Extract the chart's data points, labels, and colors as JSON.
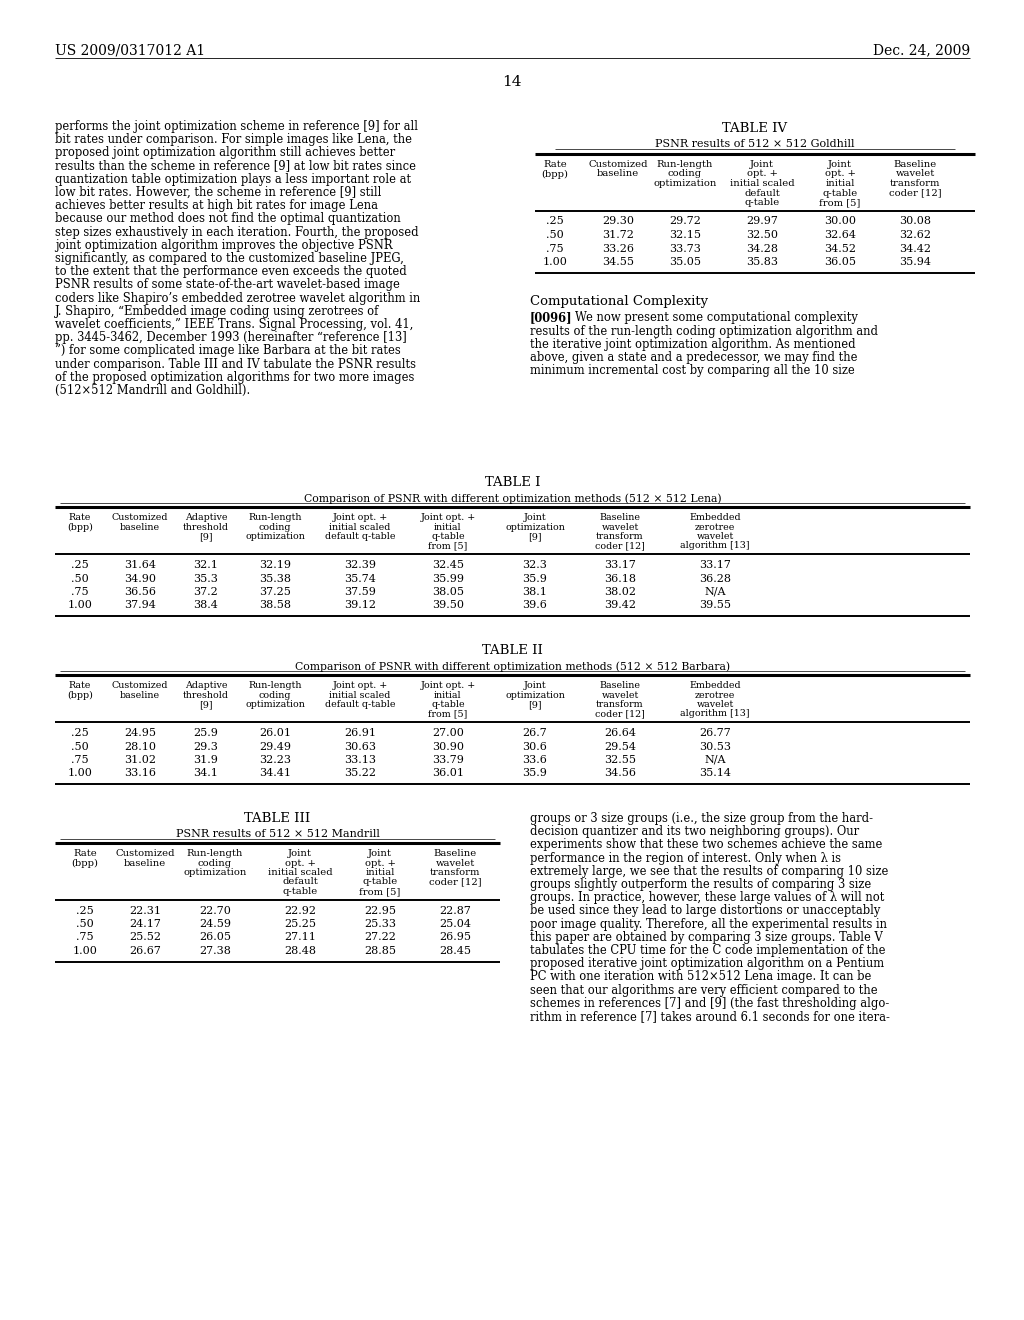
{
  "page_number": "14",
  "patent_left": "US 2009/0317012 A1",
  "patent_right": "Dec. 24, 2009",
  "background_color": "#ffffff",
  "text_color": "#000000",
  "left_column_text": [
    "performs the joint optimization scheme in reference [9] for all",
    "bit rates under comparison. For simple images like Lena, the",
    "proposed joint optimization algorithm still achieves better",
    "results than the scheme in reference [9] at low bit rates since",
    "quantization table optimization plays a less important role at",
    "low bit rates. However, the scheme in reference [9] still",
    "achieves better results at high bit rates for image Lena",
    "because our method does not find the optimal quantization",
    "step sizes exhaustively in each iteration. Fourth, the proposed",
    "joint optimization algorithm improves the objective PSNR",
    "significantly, as compared to the customized baseline JPEG,",
    "to the extent that the performance even exceeds the quoted",
    "PSNR results of some state-of-the-art wavelet-based image",
    "coders like Shapiro’s embedded zerotree wavelet algorithm in",
    "J. Shapiro, “Embedded image coding using zerotrees of",
    "wavelet coefficients,” IEEE Trans. Signal Processing, vol. 41,",
    "pp. 3445-3462, December 1993 (hereinafter “reference [13]",
    "”) for some complicated image like Barbara at the bit rates",
    "under comparison. Table III and IV tabulate the PSNR results",
    "of the proposed optimization algorithms for two more images",
    "(512×512 Mandrill and Goldhill)."
  ],
  "table4_title": "TABLE IV",
  "table4_subtitle": "PSNR results of 512 × 512 Goldhill",
  "table4_col_headers": [
    [
      "Rate",
      "(bpp)"
    ],
    [
      "Customized",
      "baseline"
    ],
    [
      "Run-length",
      "coding",
      "optimization"
    ],
    [
      "Joint",
      "opt. +",
      "initial scaled",
      "default",
      "q-table"
    ],
    [
      "Joint",
      "opt. +",
      "initial",
      "q-table",
      "from [5]"
    ],
    [
      "Baseline",
      "wavelet",
      "transform",
      "coder [12]"
    ]
  ],
  "table4_data": [
    [
      ".25",
      "29.30",
      "29.72",
      "29.97",
      "30.00",
      "30.08"
    ],
    [
      ".50",
      "31.72",
      "32.15",
      "32.50",
      "32.64",
      "32.62"
    ],
    [
      ".75",
      "33.26",
      "33.73",
      "34.28",
      "34.52",
      "34.42"
    ],
    [
      "1.00",
      "34.55",
      "35.05",
      "35.83",
      "36.05",
      "35.94"
    ]
  ],
  "comp_complexity_title": "Computational Complexity",
  "comp_complexity_para": [
    "[0096]   We now present some computational complexity",
    "results of the run-length coding optimization algorithm and",
    "the iterative joint optimization algorithm. As mentioned",
    "above, given a state and a predecessor, we may find the",
    "minimum incremental cost by comparing all the 10 size"
  ],
  "table1_title": "TABLE I",
  "table1_subtitle": "Comparison of PSNR with different optimization methods (512 × 512 Lena)",
  "table1_col_headers": [
    [
      "Rate",
      "(bpp)"
    ],
    [
      "Customized",
      "baseline"
    ],
    [
      "Adaptive",
      "threshold",
      "[9]"
    ],
    [
      "Run-length",
      "coding",
      "optimization"
    ],
    [
      "Joint opt. +",
      "initial scaled",
      "default q-table"
    ],
    [
      "Joint opt. +",
      "initial",
      "q-table",
      "from [5]"
    ],
    [
      "Joint",
      "optimization",
      "[9]"
    ],
    [
      "Baseline",
      "wavelet",
      "transform",
      "coder [12]"
    ],
    [
      "Embedded",
      "zerotree",
      "wavelet",
      "algorithm [13]"
    ]
  ],
  "table1_data": [
    [
      ".25",
      "31.64",
      "32.1",
      "32.19",
      "32.39",
      "32.45",
      "32.3",
      "33.17",
      "33.17"
    ],
    [
      ".50",
      "34.90",
      "35.3",
      "35.38",
      "35.74",
      "35.99",
      "35.9",
      "36.18",
      "36.28"
    ],
    [
      ".75",
      "36.56",
      "37.2",
      "37.25",
      "37.59",
      "38.05",
      "38.1",
      "38.02",
      "N/A"
    ],
    [
      "1.00",
      "37.94",
      "38.4",
      "38.58",
      "39.12",
      "39.50",
      "39.6",
      "39.42",
      "39.55"
    ]
  ],
  "table2_title": "TABLE II",
  "table2_subtitle": "Comparison of PSNR with different optimization methods (512 × 512 Barbara)",
  "table2_col_headers": [
    [
      "Rate",
      "(bpp)"
    ],
    [
      "Customized",
      "baseline"
    ],
    [
      "Adaptive",
      "threshold",
      "[9]"
    ],
    [
      "Run-length",
      "coding",
      "optimization"
    ],
    [
      "Joint opt. +",
      "initial scaled",
      "default q-table"
    ],
    [
      "Joint opt. +",
      "initial",
      "q-table",
      "from [5]"
    ],
    [
      "Joint",
      "optimization",
      "[9]"
    ],
    [
      "Baseline",
      "wavelet",
      "transform",
      "coder [12]"
    ],
    [
      "Embedded",
      "zerotree",
      "wavelet",
      "algorithm [13]"
    ]
  ],
  "table2_data": [
    [
      ".25",
      "24.95",
      "25.9",
      "26.01",
      "26.91",
      "27.00",
      "26.7",
      "26.64",
      "26.77"
    ],
    [
      ".50",
      "28.10",
      "29.3",
      "29.49",
      "30.63",
      "30.90",
      "30.6",
      "29.54",
      "30.53"
    ],
    [
      ".75",
      "31.02",
      "31.9",
      "32.23",
      "33.13",
      "33.79",
      "33.6",
      "32.55",
      "N/A"
    ],
    [
      "1.00",
      "33.16",
      "34.1",
      "34.41",
      "35.22",
      "36.01",
      "35.9",
      "34.56",
      "35.14"
    ]
  ],
  "table3_title": "TABLE III",
  "table3_subtitle": "PSNR results of 512 × 512 Mandrill",
  "table3_col_headers": [
    [
      "Rate",
      "(bpp)"
    ],
    [
      "Customized",
      "baseline"
    ],
    [
      "Run-length",
      "coding",
      "optimization"
    ],
    [
      "Joint",
      "opt. +",
      "initial scaled",
      "default",
      "q-table"
    ],
    [
      "Joint",
      "opt. +",
      "initial",
      "q-table",
      "from [5]"
    ],
    [
      "Baseline",
      "wavelet",
      "transform",
      "coder [12]"
    ]
  ],
  "table3_data": [
    [
      ".25",
      "22.31",
      "22.70",
      "22.92",
      "22.95",
      "22.87"
    ],
    [
      ".50",
      "24.17",
      "24.59",
      "25.25",
      "25.33",
      "25.04"
    ],
    [
      ".75",
      "25.52",
      "26.05",
      "27.11",
      "27.22",
      "26.95"
    ],
    [
      "1.00",
      "26.67",
      "27.38",
      "28.48",
      "28.85",
      "28.45"
    ]
  ],
  "right_col_bottom_text": [
    "groups or 3 size groups (i.e., the size group from the hard-",
    "decision quantizer and its two neighboring groups). Our",
    "experiments show that these two schemes achieve the same",
    "performance in the region of interest. Only when λ is",
    "extremely large, we see that the results of comparing 10 size",
    "groups slightly outperform the results of comparing 3 size",
    "groups. In practice, however, these large values of λ will not",
    "be used since they lead to large distortions or unacceptably",
    "poor image quality. Therefore, all the experimental results in",
    "this paper are obtained by comparing 3 size groups. Table V",
    "tabulates the CPU time for the C code implementation of the",
    "proposed iterative joint optimization algorithm on a Pentium",
    "PC with one iteration with 512×512 Lena image. It can be",
    "seen that our algorithms are very efficient compared to the",
    "schemes in references [7] and [9] (the fast thresholding algo-",
    "rithm in reference [7] takes around 6.1 seconds for one itera-"
  ]
}
